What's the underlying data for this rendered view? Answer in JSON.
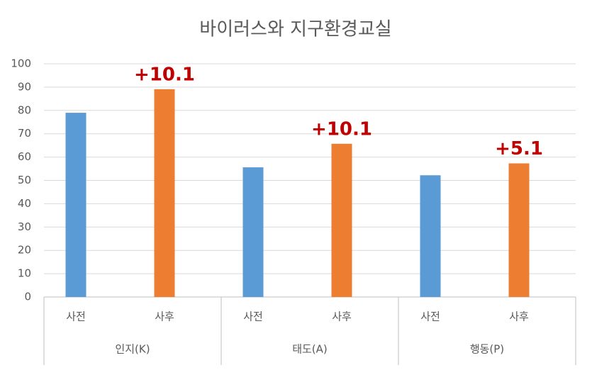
{
  "chart_data": {
    "type": "bar",
    "title": "바이러스와 지구환경교실",
    "categories": [
      "사전",
      "사후",
      "사전",
      "사후",
      "사전",
      "사후"
    ],
    "groups": [
      "인지(K)",
      "태도(A)",
      "행동(P)"
    ],
    "values": [
      79,
      89.1,
      55.6,
      65.7,
      52.2,
      57.3
    ],
    "colors": [
      "#5b9bd5",
      "#ed7d31",
      "#5b9bd5",
      "#ed7d31",
      "#5b9bd5",
      "#ed7d31"
    ],
    "annotations": [
      null,
      "+10.1",
      null,
      "+10.1",
      null,
      "+5.1"
    ],
    "annotation_color": "#c00000",
    "ylim": [
      0,
      100
    ],
    "yticks": [
      0,
      10,
      20,
      30,
      40,
      50,
      60,
      70,
      80,
      90,
      100
    ],
    "grid": true
  }
}
